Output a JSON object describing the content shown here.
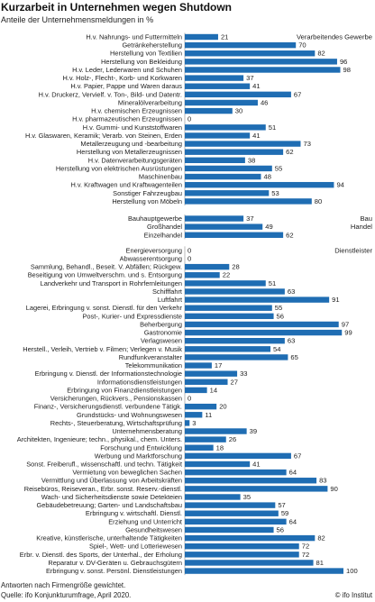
{
  "chart_data": {
    "type": "bar",
    "orientation": "horizontal",
    "title": "Kurzarbeit in Unternehmen wegen Shutdown",
    "subtitle": "Anteile der Unternehmensmeldungen in %",
    "xlim": [
      0,
      100
    ],
    "grid": false,
    "colors": {
      "bar": "#1f6db3",
      "axis": "#9a9a9a",
      "text": "#1c1c1c"
    },
    "groups": [
      {
        "name": "Verarbeitendes Gewerbe",
        "categories": [
          "H.v. Nahrungs- und Futtermitteln",
          "Getränkeherstellung",
          "Herstellung von Textilien",
          "Herstellung von Bekleidung",
          "H.v. Leder, Lederwaren und Schuhen",
          "H.v. Holz-, Flecht-, Korb- und Korkwaren",
          "H.v. Papier, Pappe und Waren daraus",
          "H.v. Druckerz, Vervielf. v. Ton-, Bild- und Datentr.",
          "Mineralölverarbeitung",
          "H.v. chemischen Erzeugnissen",
          "H.v. pharmazeutischen Erzeugnissen",
          "H.v. Gummi- und Kunststoffwaren",
          "H.v. Glaswaren, Keramik; Verarb. von Steinen, Erden",
          "Metallerzeugung und -bearbeitung",
          "Herstellung von Metallerzeugnissen",
          "H.v. Datenverarbeitungsgeräten",
          "Herstellung von elektrischen Ausrüstungen",
          "Maschinenbau",
          "H.v. Kraftwagen und Kraftwagenteilen",
          "Sonstiger Fahrzeugbau",
          "Herstellung von Möbeln"
        ],
        "values": [
          21,
          70,
          82,
          96,
          98,
          37,
          41,
          67,
          46,
          30,
          0,
          51,
          41,
          73,
          62,
          38,
          55,
          48,
          94,
          53,
          80
        ]
      },
      {
        "name": "Bau",
        "categories": [
          "Bauhauptgewerbe"
        ],
        "values": [
          37
        ]
      },
      {
        "name": "Handel",
        "categories": [
          "Großhandel",
          "Einzelhandel"
        ],
        "values": [
          49,
          62
        ]
      },
      {
        "name": "Dienstleister",
        "categories": [
          "Energieversorgung",
          "Abwasserentsorgung",
          "Sammlung, Behandl., Beseit. V. Abfällen; Rückgew.",
          "Beseitigung von Umweltverschm. und s. Entsorgung",
          "Landverkehr und Transport in Rohrfernleitungen",
          "Schifffahrt",
          "Luftfahrt",
          "Lagerei, Erbringung v. sonst. Dienstl. für den Verkehr",
          "Post-, Kurier- und Expressdienste",
          "Beherbergung",
          "Gastronomie",
          "Verlagswesen",
          "Herstell., Verleih, Vertrieb v. Filmen; Verlegen v. Musik",
          "Rundfunkveranstalter",
          "Telekommunikation",
          "Erbringung v. Dienstl. der Informationstechnologie",
          "Informationsdienstleistungen",
          "Erbringung von Finanzdienstleistungen",
          "Versicherungen, Rückvers., Pensionskassen",
          "Finanz-, Versicherungsdienstl. verbundene Tätigk.",
          "Grundstücks- und Wohnungswesen",
          "Rechts-, Steuerberatung, Wirtschaftsprüfung",
          "Unternehmensberatung",
          "Architekten, Ingenieure; techn., physikal., chem. Unters.",
          "Forschung und Entwicklung",
          "Werbung und Marktforschung",
          "Sonst. Freiberufl., wissenschaftl. und techn. Tätigkeit",
          "Vermietung von beweglichen Sachen",
          "Vermittlung und Überlassung von Arbeitskräften",
          "Reisebüros, Reiseveran., Erbr. sonst. Reserv.-dienstl.",
          "Wach- und Sicherheitsdienste sowie Detekteien",
          "Gebäudebetreuung; Garten- und Landschaftsbau",
          "Erbringung v. wirtschaftl. Dienstl.",
          "Erziehung und Unterricht",
          "Gesundheitswesen",
          "Kreative, künstlerische, unterhaltende Tätigkeiten",
          "Spiel-, Wett- und Lotteriewesen",
          "Erbr. v. Dienstl. des Sports, der Unterhal., der Erholung",
          "Reparatur v. DV-Geräten u. Gebrauchsgütern",
          "Erbringung v. sonst. Persönl. Dienstleistungen"
        ],
        "values": [
          0,
          0,
          28,
          22,
          51,
          63,
          91,
          55,
          56,
          97,
          99,
          63,
          54,
          65,
          17,
          33,
          27,
          14,
          0,
          20,
          11,
          3,
          39,
          26,
          18,
          67,
          41,
          64,
          83,
          90,
          35,
          57,
          59,
          64,
          56,
          82,
          72,
          72,
          81,
          100
        ]
      }
    ],
    "note": "Antworten nach Firmengröße gewichtet.",
    "source": "Quelle: ifo Konjunkturumfrage, April 2020.",
    "copyright": "© ifo Institut"
  }
}
